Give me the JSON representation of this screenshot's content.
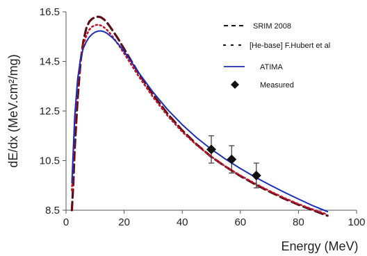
{
  "chart_data": {
    "type": "line",
    "xlabel": "Energy (MeV)",
    "ylabel": "dE/dx (MeV.cm²/mg)",
    "xlim": [
      0,
      100
    ],
    "ylim": [
      8.5,
      16.5
    ],
    "x_ticks": [
      "0",
      "20",
      "40",
      "60",
      "80",
      "100"
    ],
    "y_ticks": [
      "8.5",
      "10.5",
      "12.5",
      "14.5",
      "16.5"
    ],
    "grid": false,
    "legend_position": "top-right",
    "series": [
      {
        "name": "SRIM 2008",
        "style": "dashed",
        "color": "#5a0f17",
        "x": [
          2.0,
          2.5,
          3,
          4,
          5,
          6,
          7,
          8,
          9,
          10,
          11,
          12,
          13,
          14,
          15,
          16,
          18,
          20,
          25,
          30,
          35,
          40,
          45,
          50,
          55,
          60,
          65,
          70,
          75,
          80,
          85,
          90
        ],
        "y": [
          8.5,
          9.6,
          11.0,
          13.0,
          14.5,
          15.35,
          15.85,
          16.1,
          16.22,
          16.28,
          16.3,
          16.28,
          16.2,
          16.08,
          15.92,
          15.75,
          15.4,
          15.0,
          14.02,
          13.15,
          12.38,
          11.72,
          11.15,
          10.65,
          10.25,
          9.88,
          9.55,
          9.25,
          8.97,
          8.72,
          8.5,
          8.28
        ]
      },
      {
        "name": "[He-base] F.Hubert et al",
        "style": "dotted",
        "color": "#c0142c",
        "x": [
          2.0,
          2.5,
          3,
          4,
          5,
          6,
          7,
          8,
          9,
          10,
          11,
          12,
          13,
          14,
          15,
          16,
          18,
          20,
          25,
          30,
          35,
          40,
          45,
          50,
          55,
          60,
          65,
          70,
          75,
          80,
          85,
          90
        ],
        "y": [
          9.3,
          10.6,
          12.0,
          13.6,
          14.6,
          15.2,
          15.55,
          15.78,
          15.9,
          15.96,
          15.98,
          15.95,
          15.88,
          15.78,
          15.65,
          15.5,
          15.18,
          14.82,
          13.9,
          13.05,
          12.3,
          11.66,
          11.12,
          10.66,
          10.25,
          9.9,
          9.58,
          9.28,
          9.0,
          8.75,
          8.53,
          8.32
        ]
      },
      {
        "name": "ATIMA",
        "style": "solid",
        "color": "#1a2fb8",
        "x": [
          2.0,
          2.5,
          3,
          4,
          5,
          6,
          7,
          8,
          9,
          10,
          11,
          12,
          13,
          14,
          15,
          16,
          18,
          20,
          25,
          30,
          35,
          40,
          45,
          50,
          55,
          60,
          65,
          70,
          75,
          80,
          85,
          90
        ],
        "y": [
          9.6,
          11.0,
          12.3,
          13.8,
          14.6,
          15.05,
          15.3,
          15.48,
          15.6,
          15.68,
          15.72,
          15.73,
          15.7,
          15.64,
          15.55,
          15.45,
          15.2,
          14.9,
          14.05,
          13.25,
          12.55,
          11.95,
          11.42,
          10.96,
          10.55,
          10.18,
          9.84,
          9.53,
          9.23,
          8.95,
          8.68,
          8.44
        ]
      },
      {
        "name": "Measured",
        "style": "markers",
        "color": "#111111",
        "x": [
          50,
          57,
          65.5
        ],
        "y": [
          10.95,
          10.55,
          9.9
        ],
        "error": [
          0.55,
          0.55,
          0.5
        ]
      }
    ]
  }
}
